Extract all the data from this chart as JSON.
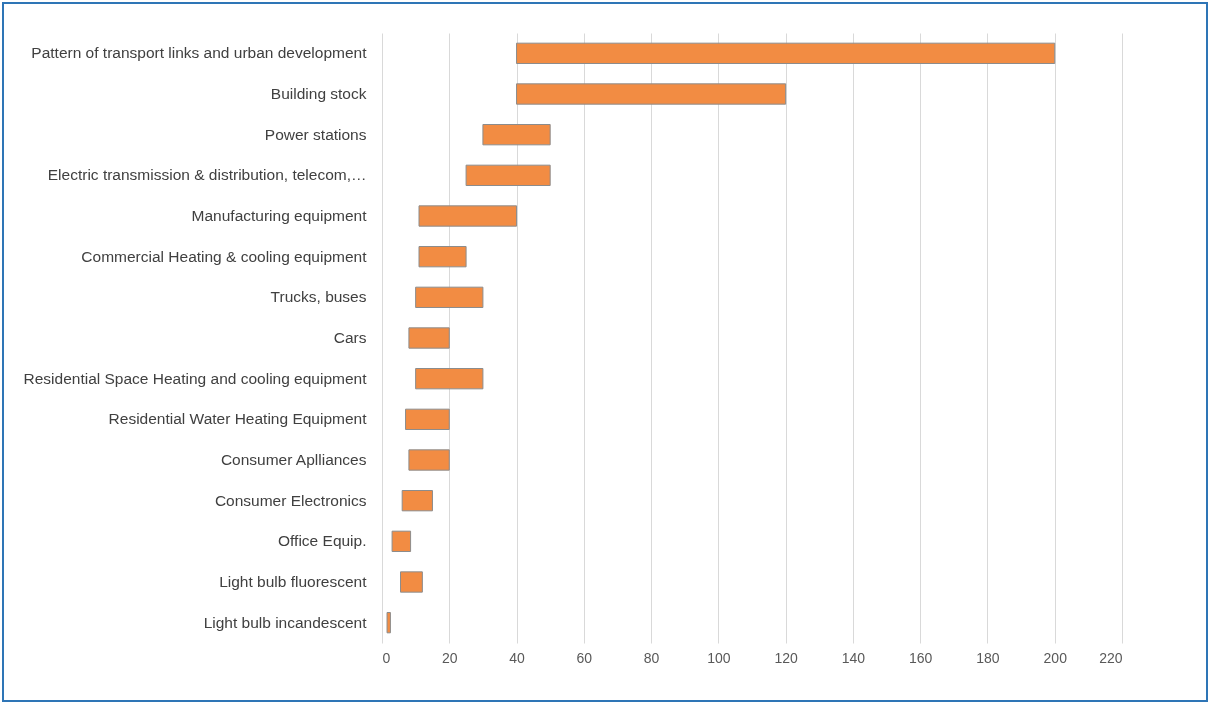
{
  "chart_data": {
    "type": "bar",
    "orientation": "horizontal",
    "categories": [
      "Pattern of transport links and urban development",
      "Building stock",
      "Power stations",
      "Electric transmission & distribution, telecom,…",
      "Manufacturing equipment",
      "Commercial Heating & cooling equipment",
      "Trucks, buses",
      "Cars",
      "Residential Space Heating and cooling equipment",
      "Residential Water Heating Equipment",
      "Consumer Aplliances",
      "Consumer Electronics",
      "Office Equip.",
      "Light bulb fluorescent",
      "Light bulb incandescent"
    ],
    "base": [
      40,
      40,
      30,
      25,
      11,
      11,
      10,
      8,
      10,
      7,
      8,
      6,
      3,
      5.5,
      1.5
    ],
    "values": [
      160,
      80,
      20,
      25,
      29,
      14,
      20,
      12,
      20,
      13,
      12,
      9,
      5.5,
      6.5,
      1
    ],
    "color": "#f28c43",
    "xlim": [
      0,
      220
    ],
    "xticks": [
      0,
      20,
      40,
      60,
      80,
      100,
      120,
      140,
      160,
      180,
      200,
      220
    ],
    "grid": "x"
  }
}
